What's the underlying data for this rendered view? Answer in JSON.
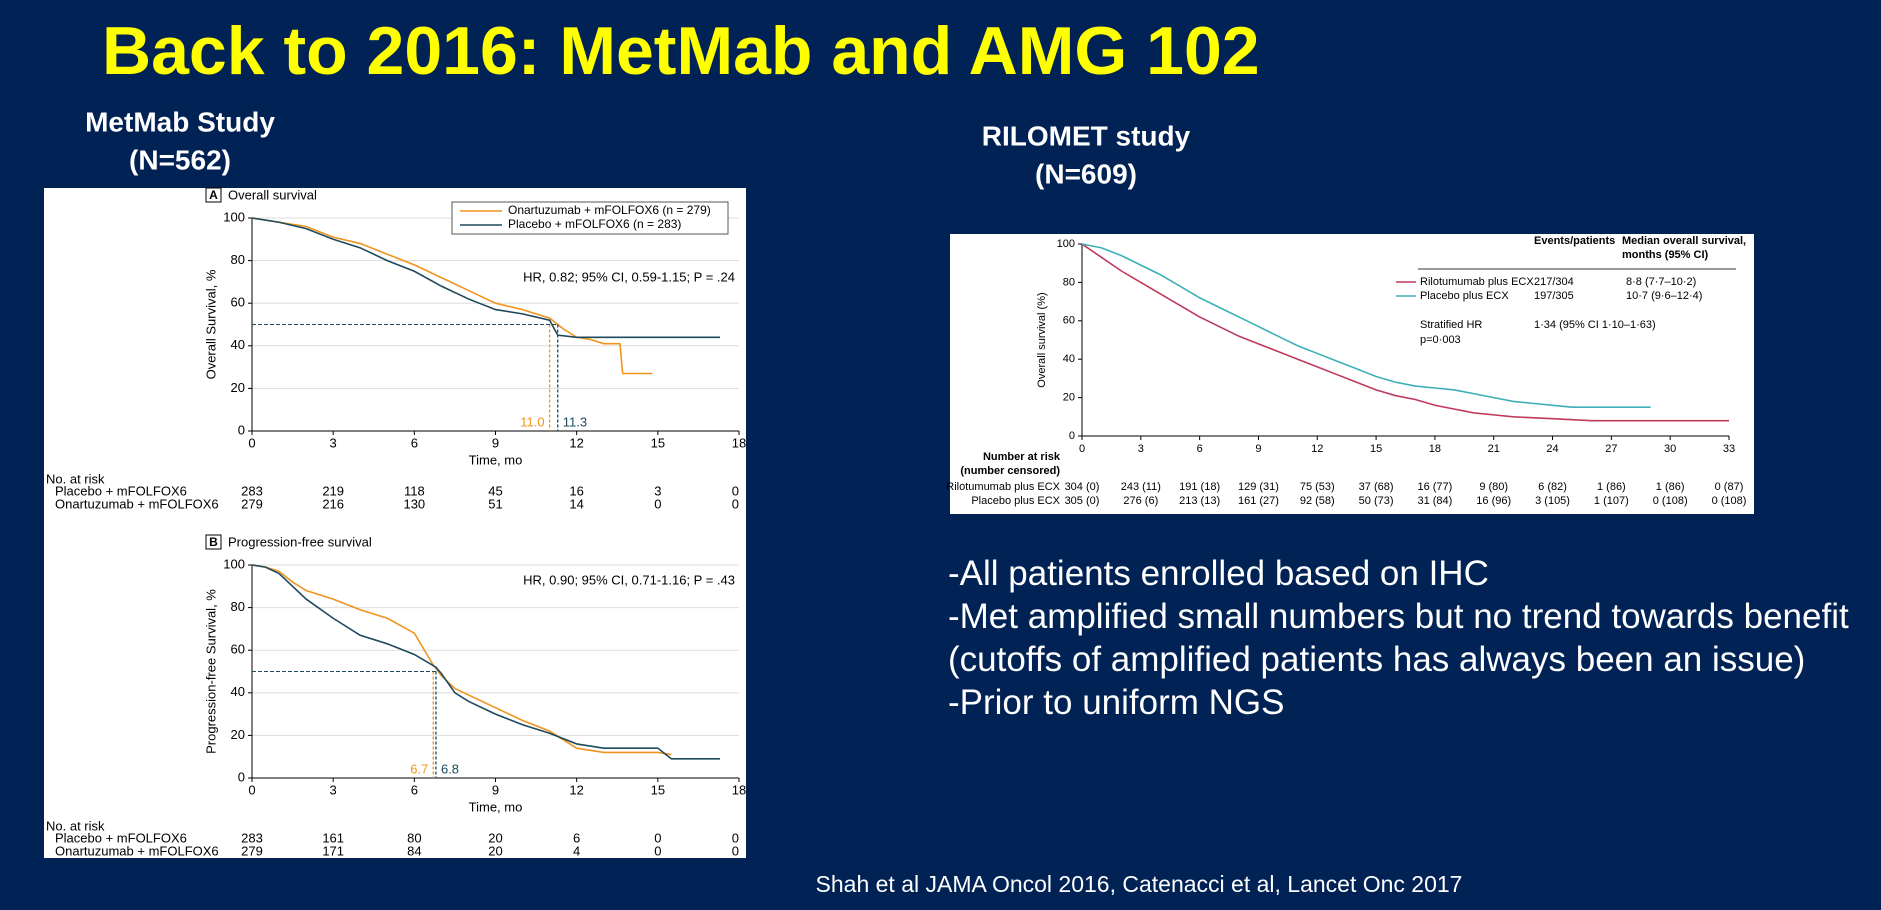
{
  "title": "Back to 2016: MetMab and AMG 102",
  "left_heading": [
    "MetMab Study",
    "(N=562)"
  ],
  "right_heading": [
    "RILOMET study",
    "(N=609)"
  ],
  "bullets": [
    "-All patients enrolled based on IHC",
    "-Met amplified small numbers but no trend towards benefit (cutoffs of amplified patients has always been an issue)",
    "-Prior to uniform NGS"
  ],
  "citation": "Shah et al JAMA Oncol 2016, Catenacci et al, Lancet Onc 2017",
  "chart_data": [
    {
      "type": "line",
      "panel": "A",
      "title": "Overall survival",
      "xlabel": "Time, mo",
      "ylabel": "Overall Survival, %",
      "xlim": [
        0,
        18
      ],
      "xticks": [
        0,
        3,
        6,
        9,
        12,
        15,
        18
      ],
      "ylim": [
        0,
        100
      ],
      "yticks": [
        0,
        20,
        40,
        60,
        80,
        100
      ],
      "grid": true,
      "annotation": "HR, 0.82; 95% CI, 0.59-1.15; P = .24",
      "legend": "upper right",
      "series": [
        {
          "name": "Onartuzumab + mFOLFOX6 (n = 279)",
          "color": "#f0941e",
          "x": [
            0,
            1,
            2,
            3,
            4,
            5,
            6,
            7,
            8,
            9,
            10,
            11,
            11.5,
            12,
            12.5,
            13,
            13.6,
            13.7,
            14.8
          ],
          "values": [
            100,
            98,
            96,
            91,
            88,
            83,
            78,
            72,
            66,
            60,
            57,
            53,
            48,
            44,
            43,
            41,
            41,
            27,
            27
          ],
          "median": {
            "value": 11.0,
            "label": "11.0"
          }
        },
        {
          "name": "Placebo + mFOLFOX6 (n = 283)",
          "color": "#1e4a5c",
          "x": [
            0,
            1,
            2,
            3,
            4,
            5,
            6,
            7,
            8,
            9,
            10,
            11,
            11.3,
            12,
            13,
            14,
            15,
            16,
            17.3
          ],
          "values": [
            100,
            98,
            95,
            90,
            86,
            80,
            75,
            68,
            62,
            57,
            55,
            52,
            45,
            44,
            44,
            44,
            44,
            44,
            44
          ],
          "median": {
            "value": 11.3,
            "label": "11.3"
          }
        }
      ],
      "risk_table": {
        "title": "No. at risk",
        "rows": [
          {
            "name": "Placebo + mFOLFOX6",
            "values": [
              283,
              219,
              118,
              45,
              16,
              3,
              0
            ]
          },
          {
            "name": "Onartuzumab + mFOLFOX6",
            "values": [
              279,
              216,
              130,
              51,
              14,
              0,
              0
            ]
          }
        ]
      }
    },
    {
      "type": "line",
      "panel": "B",
      "title": "Progression-free survival",
      "xlabel": "Time, mo",
      "ylabel": "Progression-free Survival, %",
      "xlim": [
        0,
        18
      ],
      "xticks": [
        0,
        3,
        6,
        9,
        12,
        15,
        18
      ],
      "ylim": [
        0,
        100
      ],
      "yticks": [
        0,
        20,
        40,
        60,
        80,
        100
      ],
      "grid": true,
      "annotation": "HR, 0.90; 95% CI, 0.71-1.16; P = .43",
      "series": [
        {
          "color": "#f0941e",
          "x": [
            0,
            0.5,
            1,
            1.5,
            2,
            3,
            4,
            5,
            6,
            6.7,
            7,
            7.5,
            8,
            9,
            10,
            11,
            12,
            13,
            14,
            15,
            15.5
          ],
          "values": [
            100,
            99,
            97,
            92,
            88,
            84,
            79,
            75,
            68,
            53,
            48,
            42,
            39,
            33,
            27,
            22,
            14,
            12,
            12,
            12,
            11
          ],
          "median": {
            "value": 6.7,
            "label": "6.7"
          }
        },
        {
          "color": "#1e4a5c",
          "x": [
            0,
            0.5,
            1,
            1.5,
            2,
            3,
            4,
            5,
            6,
            6.8,
            7,
            7.5,
            8,
            9,
            10,
            11,
            12,
            13,
            14,
            15,
            15.5,
            16,
            17.3
          ],
          "values": [
            100,
            99,
            96,
            90,
            84,
            75,
            67,
            63,
            58,
            52,
            49,
            40,
            36,
            30,
            25,
            21,
            16,
            14,
            14,
            14,
            9,
            9,
            9
          ],
          "median": {
            "value": 6.8,
            "label": "6.8"
          }
        }
      ],
      "risk_table": {
        "title": "No. at risk",
        "rows": [
          {
            "name": "Placebo + mFOLFOX6",
            "values": [
              283,
              161,
              80,
              20,
              6,
              0,
              0
            ]
          },
          {
            "name": "Onartuzumab + mFOLFOX6",
            "values": [
              279,
              171,
              84,
              20,
              4,
              0,
              0
            ]
          }
        ]
      }
    },
    {
      "type": "line",
      "ylabel": "Overall survival (%)",
      "xlim": [
        0,
        33
      ],
      "xticks": [
        0,
        3,
        6,
        9,
        12,
        15,
        18,
        21,
        24,
        27,
        30,
        33
      ],
      "ylim": [
        0,
        100
      ],
      "yticks": [
        0,
        20,
        40,
        60,
        80,
        100
      ],
      "grid": false,
      "series": [
        {
          "name": "Rilotumumab plus ECX",
          "color": "#c0395a",
          "x": [
            0,
            1,
            2,
            3,
            4,
            5,
            6,
            7,
            8,
            9,
            10,
            11,
            12,
            13,
            14,
            15,
            16,
            17,
            18,
            19,
            20,
            21,
            22,
            24,
            26,
            28,
            30,
            33
          ],
          "values": [
            100,
            93,
            86,
            80,
            74,
            68,
            62,
            57,
            52,
            48,
            44,
            40,
            36,
            32,
            28,
            24,
            21,
            19,
            16,
            14,
            12,
            11,
            10,
            9,
            8,
            8,
            8,
            8
          ]
        },
        {
          "name": "Placebo plus ECX",
          "color": "#3bb0b8",
          "x": [
            0,
            1,
            2,
            3,
            4,
            5,
            6,
            7,
            8,
            9,
            10,
            11,
            12,
            13,
            14,
            15,
            16,
            17,
            18,
            19,
            20,
            21,
            22,
            23,
            24,
            25,
            27,
            29
          ],
          "values": [
            100,
            98,
            94,
            89,
            84,
            78,
            72,
            67,
            62,
            57,
            52,
            47,
            43,
            39,
            35,
            31,
            28,
            26,
            25,
            24,
            22,
            20,
            18,
            17,
            16,
            15,
            15,
            15
          ]
        }
      ],
      "legend_table": {
        "headers": [
          "Events/patients",
          [
            "Median overall survival,",
            "months (95% CI)"
          ]
        ],
        "rows": [
          [
            "217/304",
            "8·8 (7·7–10·2)"
          ],
          [
            "197/305",
            "10·7 (9·6–12·4)"
          ]
        ]
      },
      "annotation": [
        [
          "Stratified HR",
          "p=0·003"
        ],
        "1·34 (95% CI 1·10–1·63)"
      ],
      "risk_table": {
        "title": [
          "Number at risk",
          "(number censored)"
        ],
        "rows": [
          {
            "name": "Rilotumumab plus ECX",
            "values": [
              "304 (0)",
              "243 (11)",
              "191 (18)",
              "129 (31)",
              "75 (53)",
              "37 (68)",
              "16 (77)",
              "9 (80)",
              "6 (82)",
              "1 (86)",
              "1 (86)",
              "0 (87)"
            ]
          },
          {
            "name": "Placebo plus ECX",
            "values": [
              "305 (0)",
              "276 (6)",
              "213 (13)",
              "161 (27)",
              "92 (58)",
              "50 (73)",
              "31 (84)",
              "16 (96)",
              "3 (105)",
              "1 (107)",
              "0 (108)",
              "0 (108)"
            ]
          }
        ]
      }
    }
  ]
}
